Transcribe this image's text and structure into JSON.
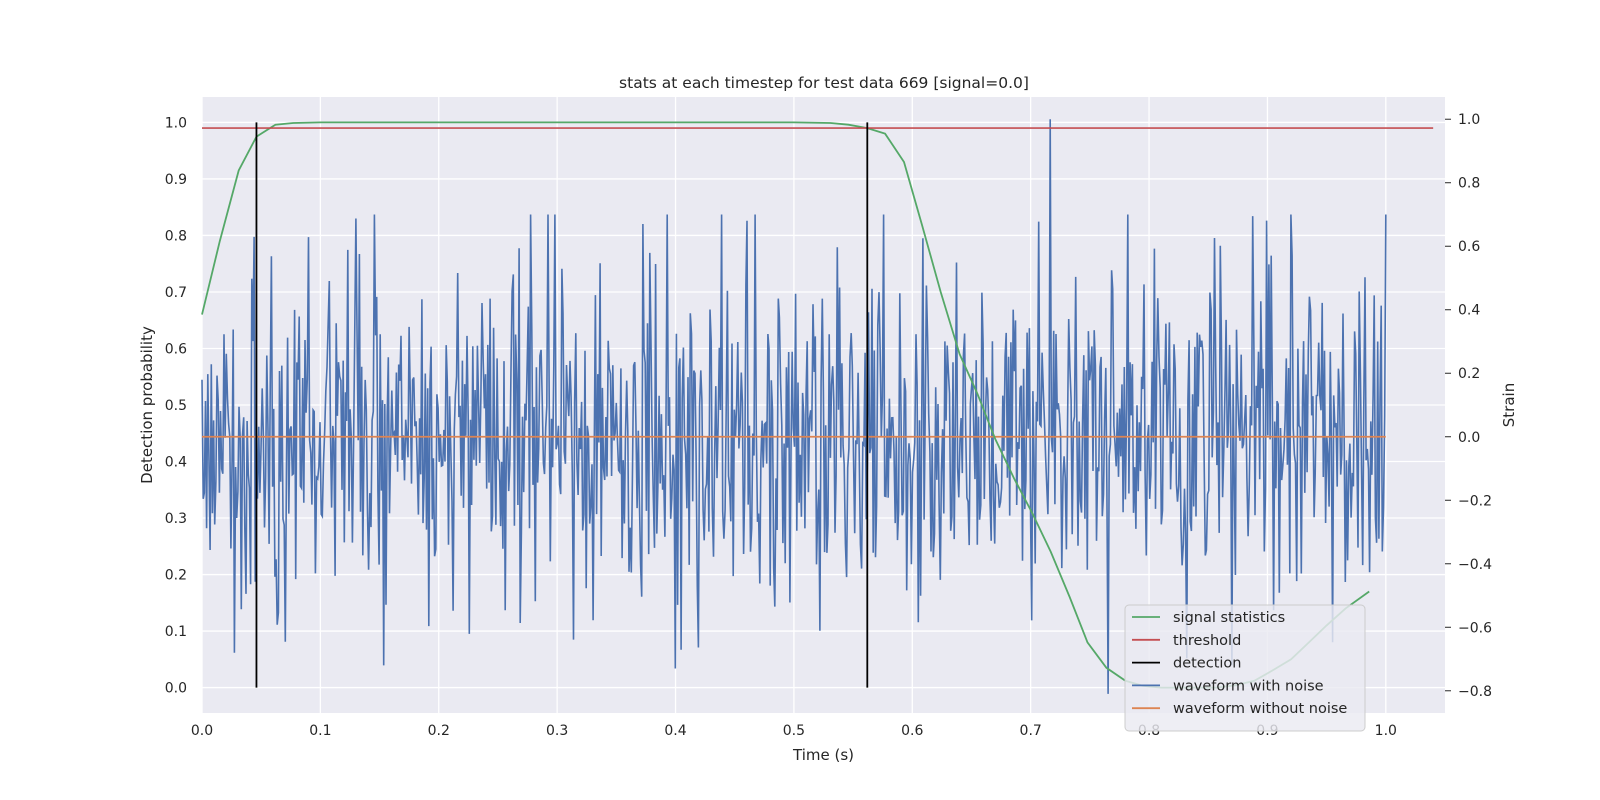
{
  "chart_data": {
    "type": "line",
    "title": "stats at each timestep for test data 669 [signal=0.0]",
    "xlabel": "Time (s)",
    "ylabel_left": "Detection probability",
    "ylabel_right": "Strain",
    "xlim": [
      0.0,
      1.05
    ],
    "ylim_left": [
      -0.045,
      1.045
    ],
    "ylim_right": [
      -0.87,
      1.07
    ],
    "xticks": [
      "0.0",
      "0.1",
      "0.2",
      "0.3",
      "0.4",
      "0.5",
      "0.6",
      "0.7",
      "0.8",
      "0.9",
      "1.0"
    ],
    "yticks_left": [
      "0.0",
      "0.1",
      "0.2",
      "0.3",
      "0.4",
      "0.5",
      "0.6",
      "0.7",
      "0.8",
      "0.9",
      "1.0"
    ],
    "yticks_right": [
      "−0.8",
      "−0.6",
      "−0.4",
      "−0.2",
      "0.0",
      "0.2",
      "0.4",
      "0.6",
      "0.8",
      "1.0"
    ],
    "grid": true,
    "legend_position": "lower right",
    "colors": {
      "signal_statistics": "#55a868",
      "threshold": "#c44e52",
      "detection": "#000000",
      "waveform_with_noise": "#4c72b0",
      "waveform_without_noise": "#dd8452",
      "axes_background": "#eaeaf2",
      "grid": "#ffffff"
    },
    "series": [
      {
        "name": "signal statistics",
        "axis": "left",
        "x": [
          0.0,
          0.015,
          0.031,
          0.046,
          0.062,
          0.077,
          0.1,
          0.2,
          0.3,
          0.4,
          0.5,
          0.531,
          0.546,
          0.562,
          0.577,
          0.593,
          0.608,
          0.624,
          0.64,
          0.655,
          0.67,
          0.686,
          0.701,
          0.717,
          0.733,
          0.748,
          0.764,
          0.78,
          0.795,
          0.81,
          0.826,
          0.842,
          0.857,
          0.873,
          0.889,
          0.904,
          0.92,
          0.935,
          0.95,
          0.966,
          0.986
        ],
        "y": [
          0.66,
          0.79,
          0.915,
          0.975,
          0.996,
          0.999,
          1.0,
          1.0,
          1.0,
          1.0,
          1.0,
          0.999,
          0.996,
          0.99,
          0.98,
          0.93,
          0.82,
          0.7,
          0.59,
          0.52,
          0.44,
          0.37,
          0.31,
          0.24,
          0.16,
          0.08,
          0.035,
          0.012,
          0.003,
          0.0,
          0.0,
          0.0,
          0.0,
          0.004,
          0.012,
          0.03,
          0.05,
          0.08,
          0.11,
          0.14,
          0.17
        ]
      },
      {
        "name": "threshold",
        "axis": "left",
        "x": [
          0.0,
          1.04
        ],
        "y": [
          0.99,
          0.99
        ]
      },
      {
        "name": "detection",
        "axis": "left",
        "segments": [
          {
            "x": 0.046,
            "y0": 0.0,
            "y1": 1.0
          },
          {
            "x": 0.562,
            "y0": 0.0,
            "y1": 1.0
          }
        ]
      },
      {
        "name": "waveform with noise",
        "axis": "right",
        "x_range": [
          0.0,
          1.0
        ],
        "samples": 1024,
        "noise_std": 0.28,
        "annotated_points": [
          {
            "x": 0.717,
            "y": 1.0
          },
          {
            "x": 0.765,
            "y": -0.81
          },
          {
            "x": 0.4,
            "y": -0.73
          },
          {
            "x": 0.46,
            "y": 0.68
          },
          {
            "x": 0.372,
            "y": 0.67
          }
        ]
      },
      {
        "name": "waveform without noise",
        "axis": "right",
        "x": [
          0.0,
          1.0
        ],
        "y": [
          0.0,
          0.0
        ]
      }
    ]
  }
}
